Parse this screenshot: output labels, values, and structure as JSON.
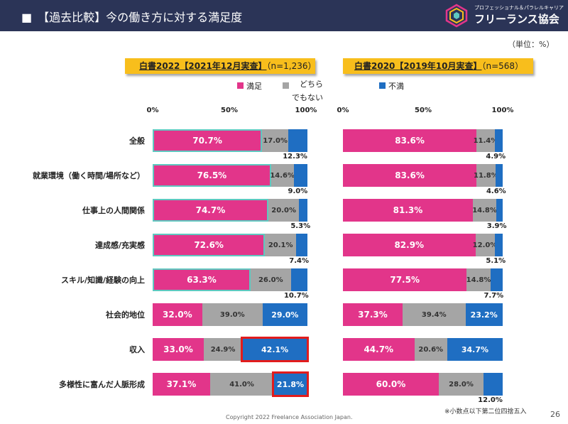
{
  "header": {
    "title": "■　【過去比較】今の働き方に対する満足度",
    "logo_sub": "プロフェッショナル＆パラレルキャリア",
    "logo_main": "フリーランス協会",
    "logo_icon": "cube-logo-icon"
  },
  "unit": "（単位：%）",
  "legend": [
    {
      "label": "満足",
      "color": "#e2358a"
    },
    {
      "label": "どちら\nでもない",
      "color": "#a5a5a5"
    },
    {
      "label": "不満",
      "color": "#1f6ec2"
    }
  ],
  "panels": [
    {
      "title": "白書2022【2021年12月実查】",
      "n": "（n=1,236）",
      "ticks": [
        "0%",
        "50%",
        "100%"
      ]
    },
    {
      "title": "白書2020【2019年10月実查】",
      "n": "（n=568）",
      "ticks": [
        "0%",
        "50%",
        "100%"
      ]
    }
  ],
  "chart_data": [
    {
      "type": "bar",
      "stacked": true,
      "orientation": "horizontal",
      "title": "白書2022【2021年12月実查】（n=1,236）",
      "categories": [
        "全般",
        "就業環境（働く時間/場所など）",
        "仕事上の人間関係",
        "達成感/充実感",
        "スキル/知識/経験の向上",
        "社会的地位",
        "収入",
        "多様性に富んだ人脈形成"
      ],
      "series": [
        {
          "name": "満足",
          "values": [
            70.7,
            76.5,
            74.7,
            72.6,
            63.3,
            32.0,
            33.0,
            37.1
          ],
          "labels": [
            "70.7%",
            "76.5%",
            "74.7%",
            "72.6%",
            "63.3%",
            "32.0%",
            "33.0%",
            "37.1%"
          ],
          "color": "#e2358a"
        },
        {
          "name": "どちらでもない",
          "values": [
            17.0,
            14.6,
            20.0,
            20.1,
            26.0,
            39.0,
            24.9,
            41.0
          ],
          "labels": [
            "17.0%",
            "14.6%",
            "20.0%",
            "20.1%",
            "26.0%",
            "39.0%",
            "24.9%",
            "41.0%"
          ],
          "color": "#a5a5a5"
        },
        {
          "name": "不満",
          "values": [
            12.3,
            9.0,
            5.3,
            7.4,
            10.7,
            29.0,
            42.1,
            21.8
          ],
          "labels": [
            "12.3%",
            "9.0%",
            "5.3%",
            "7.4%",
            "10.7%",
            "29.0%",
            "42.1%",
            "21.8%"
          ],
          "color": "#1f6ec2"
        }
      ],
      "xlim": [
        0,
        100
      ],
      "highlighted": [
        {
          "category": "収入",
          "series": "不満"
        },
        {
          "category": "多様性に富んだ人脈形成",
          "series": "不満"
        }
      ]
    },
    {
      "type": "bar",
      "stacked": true,
      "orientation": "horizontal",
      "title": "白書2020【2019年10月実查】（n=568）",
      "categories": [
        "全般",
        "就業環境（働く時間/場所など）",
        "仕事上の人間関係",
        "達成感/充実感",
        "スキル/知識/経験の向上",
        "社会的地位",
        "収入",
        "多様性に富んだ人脈形成"
      ],
      "series": [
        {
          "name": "満足",
          "values": [
            83.6,
            83.6,
            81.3,
            82.9,
            77.5,
            37.3,
            44.7,
            60.0
          ],
          "labels": [
            "83.6%",
            "83.6%",
            "81.3%",
            "82.9%",
            "77.5%",
            "37.3%",
            "44.7%",
            "60.0%"
          ],
          "color": "#e2358a"
        },
        {
          "name": "どちらでもない",
          "values": [
            11.4,
            11.8,
            14.8,
            12.0,
            14.8,
            39.4,
            20.6,
            28.0
          ],
          "labels": [
            "11.4%",
            "11.8%",
            "14.8%",
            "12.0%",
            "14.8%",
            "39.4%",
            "20.6%",
            "28.0%"
          ],
          "color": "#a5a5a5"
        },
        {
          "name": "不満",
          "values": [
            4.9,
            4.6,
            3.9,
            5.1,
            7.7,
            23.2,
            34.7,
            12.0
          ],
          "labels": [
            "4.9%",
            "4.6%",
            "3.9%",
            "5.1%",
            "7.7%",
            "23.2%",
            "34.7%",
            "12.0%"
          ],
          "color": "#1f6ec2"
        }
      ],
      "xlim": [
        0,
        100
      ]
    }
  ],
  "footnote": "※小数点以下第二位四捨五入",
  "copyright": "Copyright 2022 Freelance Association Japan.",
  "page_number": "26"
}
